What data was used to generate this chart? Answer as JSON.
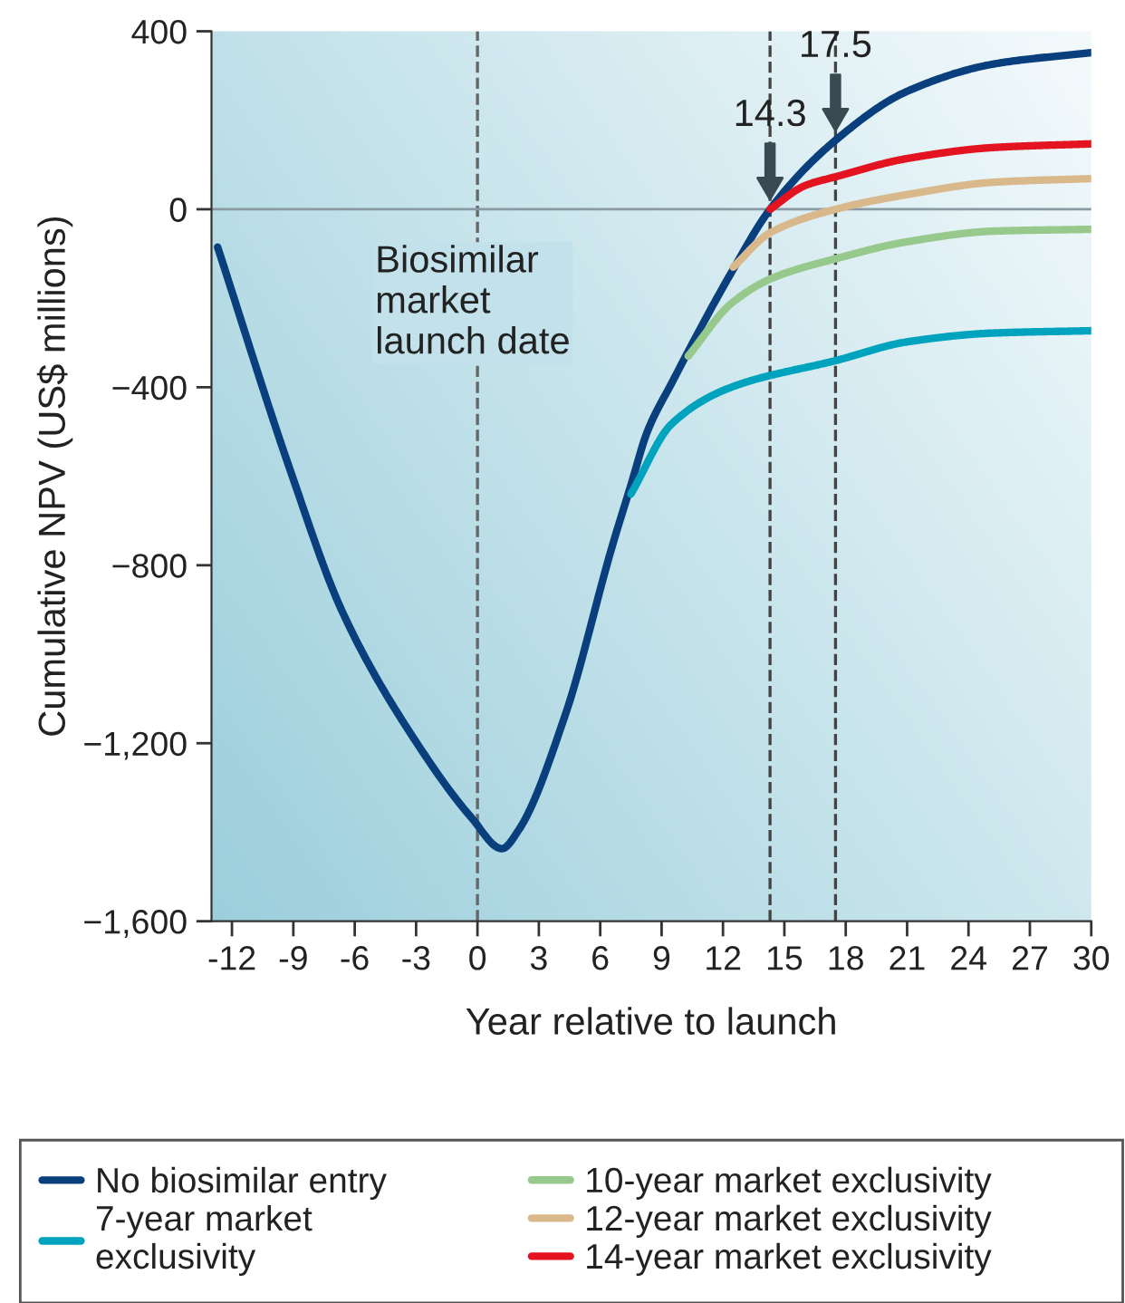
{
  "chart_data": {
    "type": "line",
    "xlabel": "Year relative to launch",
    "ylabel": "Cumulative NPV (US$ millions)",
    "xlim": [
      -13,
      30
    ],
    "xticks": [
      -12,
      -9,
      -6,
      -3,
      0,
      3,
      6,
      9,
      12,
      15,
      18,
      21,
      24,
      27,
      30
    ],
    "ylim": [
      -1600,
      400
    ],
    "yticks": [
      400,
      0,
      {
        "value": -400,
        "label": "−400"
      },
      {
        "value": -800,
        "label": "−800"
      },
      {
        "value": -1200,
        "label": "−1,200"
      },
      {
        "value": -1600,
        "label": "−1,600"
      }
    ],
    "series": [
      {
        "name": "No biosimilar entry",
        "color": "#0a3f7e",
        "x": [
          -12.7,
          -9.2,
          -6.6,
          -2.9,
          -0.3,
          1.2,
          2.0,
          4.3,
          6.6,
          7.5,
          8.3,
          9.5,
          12.4,
          14.3,
          17.5,
          21.0,
          25.3,
          30
        ],
        "values": [
          -85,
          -580,
          -905,
          -1204,
          -1367,
          -1437,
          -1396,
          -1135,
          -755,
          -620,
          -500,
          -390,
          -143,
          0,
          155,
          265,
          327,
          352
        ]
      },
      {
        "name": "7-year market\nexclusivity",
        "color": "#00a3bd",
        "x": [
          7.5,
          9.5,
          12.4,
          17.6,
          21.0,
          25.3,
          30
        ],
        "values": [
          -640,
          -482,
          -400,
          -339,
          -298,
          -278,
          -273
        ]
      },
      {
        "name": "10-year market exclusivity",
        "color": "#97c98c",
        "x": [
          10.3,
          12.4,
          14.4,
          17.6,
          21.0,
          25.3,
          30
        ],
        "values": [
          -330,
          -212,
          -155,
          -110,
          -73,
          -49,
          -45
        ]
      },
      {
        "name": "12-year market exclusivity",
        "color": "#d9b98c",
        "x": [
          12.5,
          14.3,
          17.5,
          21.0,
          25.3,
          30
        ],
        "values": [
          -130,
          -53,
          0,
          33,
          61,
          69
        ]
      },
      {
        "name": "14-year market exclusivity",
        "color": "#e3141f",
        "x": [
          14.3,
          16.0,
          17.5,
          21.0,
          25.3,
          30
        ],
        "values": [
          0,
          53,
          73,
          114,
          139,
          147
        ]
      }
    ],
    "ref_lines": [
      {
        "axis": "x",
        "value": 0,
        "label": "Biosimilar\nmarket\nlaunch date",
        "color": "#666666",
        "line_style": "dashed"
      },
      {
        "axis": "x",
        "value": 14.3,
        "color": "#444444",
        "line_style": "dashed"
      },
      {
        "axis": "x",
        "value": 17.5,
        "color": "#444444",
        "line_style": "dashed"
      },
      {
        "axis": "y",
        "value": 0,
        "color": "#8a9aa2",
        "line_style": "solid"
      }
    ],
    "annotations": [
      {
        "text": "14.3",
        "x": 14.3,
        "y": 0
      },
      {
        "text": "17.5",
        "x": 17.5,
        "y": 155
      }
    ],
    "legend": "bottom",
    "line_style": "solid",
    "grid": false
  }
}
